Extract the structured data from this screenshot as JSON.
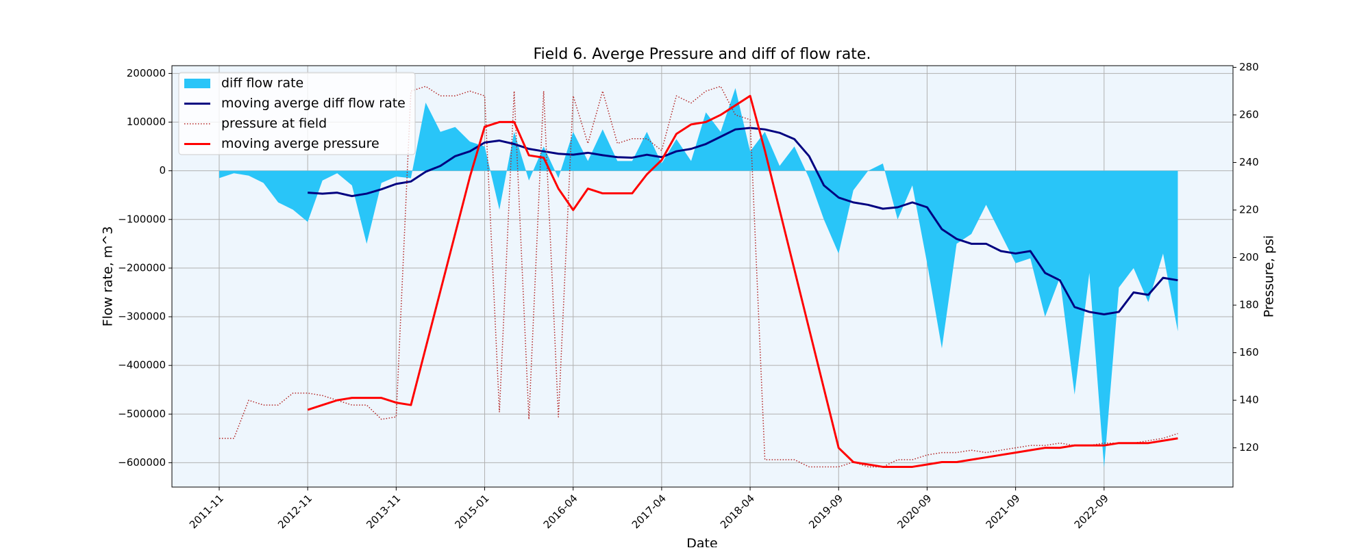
{
  "chart_data": {
    "type": "line",
    "title": "Field 6. Averge Pressure and diff of flow rate.",
    "xlabel": "Date",
    "ylabel": "Flow rate, m^3",
    "y2label": "Pressure, psi",
    "categories": [
      "2011-11",
      null,
      null,
      null,
      null,
      null,
      "2012-11",
      null,
      null,
      null,
      null,
      null,
      "2013-11",
      null,
      null,
      null,
      null,
      null,
      "2015-01",
      null,
      null,
      null,
      null,
      null,
      "2016-04",
      null,
      null,
      null,
      null,
      null,
      "2017-04",
      null,
      null,
      null,
      null,
      null,
      "2018-04",
      null,
      null,
      null,
      null,
      null,
      "2019-09",
      null,
      null,
      null,
      null,
      null,
      "2020-09",
      null,
      null,
      null,
      null,
      null,
      "2021-09",
      null,
      null,
      null,
      null,
      null,
      "2022-09",
      null,
      null,
      null,
      null,
      null
    ],
    "series": [
      {
        "name": "diff flow rate",
        "type": "area",
        "color": "#29c5f8",
        "values": [
          -15000,
          -5000,
          -10000,
          -25000,
          -65000,
          -80000,
          -105000,
          -20000,
          -5000,
          -30000,
          -150000,
          -25000,
          -12000,
          -15000,
          140000,
          80000,
          90000,
          60000,
          50000,
          -80000,
          80000,
          -20000,
          50000,
          -15000,
          80000,
          20000,
          85000,
          20000,
          20000,
          80000,
          15000,
          65000,
          20000,
          120000,
          80000,
          170000,
          40000,
          80000,
          10000,
          50000,
          -15000,
          -100000,
          -170000,
          -40000,
          0,
          15000,
          -100000,
          -30000,
          -190000,
          -365000,
          -150000,
          -130000,
          -70000,
          -130000,
          -190000,
          -180000,
          -300000,
          -220000,
          -460000,
          -210000,
          -610000,
          -240000,
          -200000,
          -270000,
          -170000,
          -330000
        ]
      },
      {
        "name": "moving averge diff flow rate",
        "type": "line",
        "color": "#000080",
        "values": [
          null,
          null,
          null,
          null,
          null,
          null,
          -45000,
          -47000,
          -45000,
          -52000,
          -47000,
          -38000,
          -27000,
          -22000,
          -2000,
          10000,
          30000,
          40000,
          58000,
          62000,
          55000,
          45000,
          40000,
          35000,
          33000,
          37000,
          32000,
          28000,
          27000,
          33000,
          28000,
          40000,
          45000,
          55000,
          70000,
          85000,
          88000,
          85000,
          78000,
          65000,
          30000,
          -30000,
          -55000,
          -65000,
          -70000,
          -78000,
          -75000,
          -65000,
          -75000,
          -120000,
          -140000,
          -150000,
          -150000,
          -165000,
          -170000,
          -165000,
          -210000,
          -225000,
          -280000,
          -290000,
          -295000,
          -290000,
          -250000,
          -255000,
          -220000,
          -225000
        ]
      },
      {
        "name": "pressure at field",
        "type": "line",
        "linestyle": "dotted",
        "axis": "y2",
        "color": "#b22222",
        "values": [
          124,
          124,
          140,
          138,
          138,
          143,
          143,
          142,
          140,
          138,
          138,
          132,
          133,
          270,
          272,
          268,
          268,
          270,
          268,
          135,
          270,
          132,
          270,
          133,
          268,
          248,
          270,
          248,
          250,
          250,
          245,
          268,
          265,
          270,
          272,
          260,
          258,
          115,
          115,
          115,
          112,
          112,
          112,
          114,
          112,
          112,
          115,
          115,
          117,
          118,
          118,
          119,
          118,
          119,
          120,
          121,
          121,
          122,
          121,
          121,
          122,
          122,
          122,
          123,
          124,
          126
        ]
      },
      {
        "name": "moving averge pressure",
        "type": "line",
        "axis": "y2",
        "color": "#ff0000",
        "values": [
          null,
          null,
          null,
          null,
          null,
          null,
          136,
          138,
          140,
          141,
          141,
          141,
          139,
          138,
          162,
          186,
          210,
          234,
          255,
          257,
          257,
          243,
          242,
          229,
          220,
          229,
          227,
          227,
          227,
          235,
          241,
          252,
          256,
          257,
          260,
          264,
          268,
          245,
          220,
          195,
          170,
          145,
          120,
          114,
          113,
          112,
          112,
          112,
          113,
          114,
          114,
          115,
          116,
          117,
          118,
          119,
          120,
          120,
          121,
          121,
          121,
          122,
          122,
          122,
          123,
          124
        ]
      }
    ],
    "ylim": [
      -650000,
      216000
    ],
    "yticks": [
      200000,
      100000,
      0,
      {
        "value": -100000,
        "label": "−100000"
      },
      {
        "value": -200000,
        "label": "−200000"
      },
      {
        "value": -300000,
        "label": "−300000"
      },
      {
        "value": -400000,
        "label": "−400000"
      },
      {
        "value": -500000,
        "label": "−500000"
      },
      {
        "value": -600000,
        "label": "−600000"
      }
    ],
    "y2lim": [
      103.5,
      280.7
    ],
    "y2ticks": [
      120,
      140,
      160,
      180,
      200,
      220,
      240,
      260,
      280
    ],
    "grid": true,
    "legend": "upper left"
  }
}
